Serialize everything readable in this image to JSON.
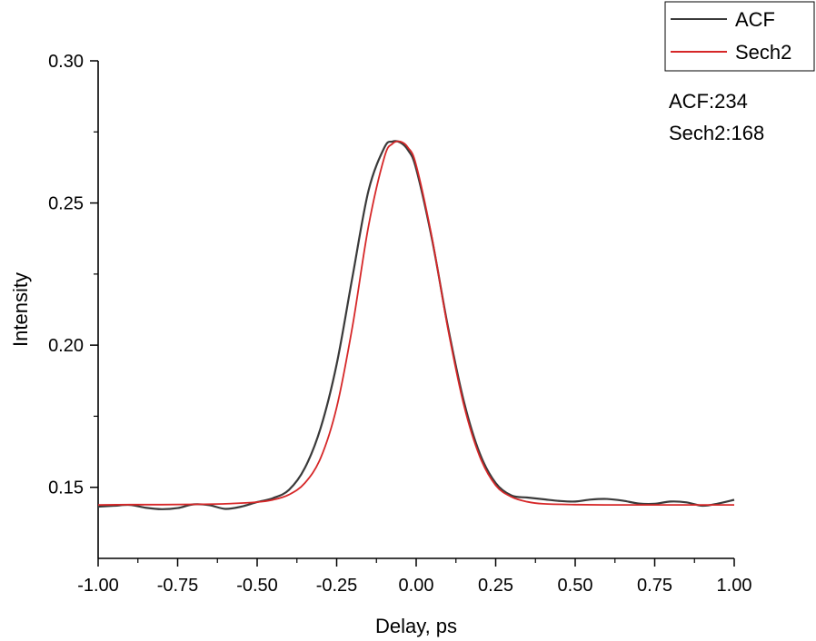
{
  "chart_data": {
    "type": "line",
    "title": "",
    "xlabel": "Delay, ps",
    "ylabel": "Intensity",
    "xlim": [
      -1.0,
      1.0
    ],
    "ylim": [
      0.125,
      0.3
    ],
    "x_ticks": [
      "-1.00",
      "-0.75",
      "-0.50",
      "-0.25",
      "0.00",
      "0.25",
      "0.50",
      "0.75",
      "1.00"
    ],
    "x_tick_values": [
      -1.0,
      -0.75,
      -0.5,
      -0.25,
      0.0,
      0.25,
      0.5,
      0.75,
      1.0
    ],
    "y_ticks": [
      "0.15",
      "0.20",
      "0.25",
      "0.30"
    ],
    "y_tick_values": [
      0.15,
      0.2,
      0.25,
      0.3
    ],
    "grid": false,
    "legend_position": "top-right",
    "series": [
      {
        "name": "ACF",
        "color": "#3a3a3a",
        "x": [
          -1.0,
          -0.95,
          -0.9,
          -0.85,
          -0.8,
          -0.75,
          -0.7,
          -0.65,
          -0.6,
          -0.55,
          -0.5,
          -0.45,
          -0.4,
          -0.35,
          -0.3,
          -0.25,
          -0.2,
          -0.15,
          -0.1,
          -0.075,
          -0.05,
          -0.025,
          0.0,
          0.05,
          0.1,
          0.15,
          0.2,
          0.25,
          0.3,
          0.35,
          0.4,
          0.45,
          0.5,
          0.55,
          0.6,
          0.65,
          0.7,
          0.75,
          0.8,
          0.85,
          0.9,
          0.95,
          1.0
        ],
        "y": [
          0.1432,
          0.1435,
          0.1438,
          0.1428,
          0.1423,
          0.1427,
          0.144,
          0.1437,
          0.1424,
          0.1432,
          0.1448,
          0.1462,
          0.1491,
          0.1568,
          0.171,
          0.1933,
          0.2242,
          0.2543,
          0.2695,
          0.2716,
          0.2713,
          0.2685,
          0.262,
          0.2371,
          0.2064,
          0.1802,
          0.1619,
          0.1515,
          0.1471,
          0.1464,
          0.1458,
          0.1452,
          0.145,
          0.1457,
          0.1459,
          0.1453,
          0.1443,
          0.1442,
          0.145,
          0.1447,
          0.1435,
          0.1443,
          0.1456
        ]
      },
      {
        "name": "Sech2",
        "color": "#d62728",
        "x": [
          -1.0,
          -0.9,
          -0.8,
          -0.7,
          -0.6,
          -0.5,
          -0.45,
          -0.4,
          -0.35,
          -0.3,
          -0.25,
          -0.2,
          -0.15,
          -0.1,
          -0.075,
          -0.05,
          -0.025,
          0.0,
          0.05,
          0.1,
          0.15,
          0.2,
          0.25,
          0.3,
          0.35,
          0.4,
          0.5,
          0.6,
          0.7,
          0.8,
          0.9,
          1.0
        ],
        "y": [
          0.1438,
          0.1439,
          0.1439,
          0.144,
          0.1442,
          0.1448,
          0.1456,
          0.1474,
          0.1515,
          0.1604,
          0.1781,
          0.2068,
          0.2418,
          0.2661,
          0.2708,
          0.2716,
          0.2694,
          0.2633,
          0.2376,
          0.2057,
          0.1789,
          0.1608,
          0.1507,
          0.1466,
          0.1449,
          0.1442,
          0.1439,
          0.1438,
          0.1438,
          0.1438,
          0.1438,
          0.1438
        ]
      }
    ],
    "annotations": [
      "ACF:234",
      "Sech2:168"
    ]
  }
}
